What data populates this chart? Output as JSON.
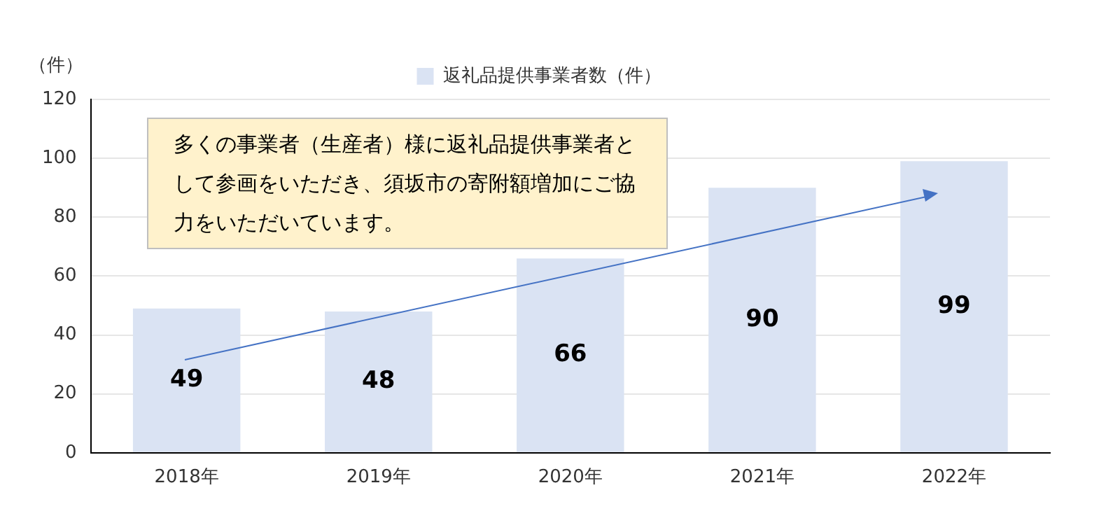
{
  "chart_data": {
    "type": "bar",
    "ylabel": "（件）",
    "categories": [
      "2018年",
      "2019年",
      "2020年",
      "2021年",
      "2022年"
    ],
    "series": [
      {
        "name": "返礼品提供事業者数（件）",
        "color": "#dae3f3",
        "values": [
          49,
          48,
          66,
          90,
          99
        ]
      }
    ],
    "ylim": [
      0,
      120
    ],
    "yticks": [
      0,
      20,
      40,
      60,
      80,
      100,
      120
    ],
    "grid": "y",
    "legend": "top",
    "data_labels": true,
    "annotations": [
      "多くの事業者（生産者）様に返礼品提供事業者として参画をいただき、須坂市の寄附額増加にご協力をいただいています。"
    ]
  }
}
